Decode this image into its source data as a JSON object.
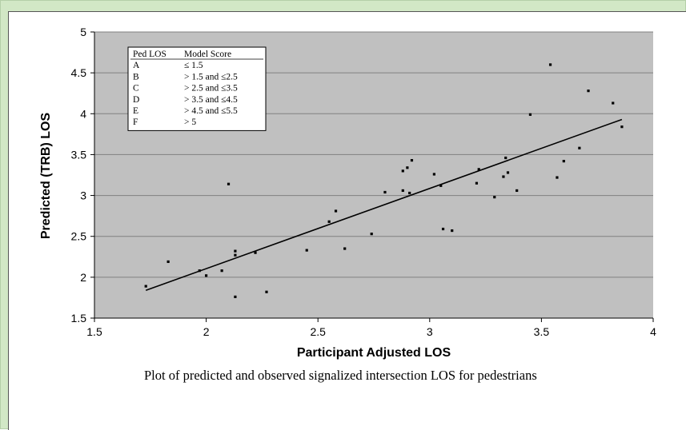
{
  "caption": "Plot of predicted and observed signalized intersection LOS for pedestrians",
  "colors": {
    "page_border": "#d2e8c6",
    "plot_bg": "#c0c0c0",
    "grid": "#808080",
    "points": "#000000",
    "line": "#000000"
  },
  "chart_data": {
    "type": "scatter",
    "xlabel": "Participant Adjusted LOS",
    "ylabel": "Predicted (TRB) LOS",
    "xlim": [
      1.5,
      4
    ],
    "ylim": [
      1.5,
      5
    ],
    "x_ticks": [
      "1.5",
      "2",
      "2.5",
      "3",
      "3.5",
      "4"
    ],
    "y_ticks": [
      "1.5",
      "2",
      "2.5",
      "3",
      "3.5",
      "4",
      "4.5",
      "5"
    ],
    "grid": "horizontal",
    "series": [
      {
        "points": [
          [
            1.73,
            1.89
          ],
          [
            1.83,
            2.19
          ],
          [
            1.97,
            2.08
          ],
          [
            2.0,
            2.02
          ],
          [
            2.07,
            2.08
          ],
          [
            2.1,
            3.14
          ],
          [
            2.13,
            2.32
          ],
          [
            2.13,
            2.27
          ],
          [
            2.13,
            1.76
          ],
          [
            2.22,
            2.3
          ],
          [
            2.27,
            1.82
          ],
          [
            2.45,
            2.33
          ],
          [
            2.55,
            2.68
          ],
          [
            2.58,
            2.81
          ],
          [
            2.62,
            2.35
          ],
          [
            2.74,
            2.53
          ],
          [
            2.8,
            3.04
          ],
          [
            2.88,
            3.06
          ],
          [
            2.88,
            3.3
          ],
          [
            2.9,
            3.34
          ],
          [
            2.91,
            3.03
          ],
          [
            2.92,
            3.43
          ],
          [
            3.02,
            3.26
          ],
          [
            3.05,
            3.12
          ],
          [
            3.06,
            2.59
          ],
          [
            3.1,
            2.57
          ],
          [
            3.21,
            3.15
          ],
          [
            3.22,
            3.32
          ],
          [
            3.29,
            2.98
          ],
          [
            3.33,
            3.23
          ],
          [
            3.34,
            3.46
          ],
          [
            3.35,
            3.28
          ],
          [
            3.39,
            3.06
          ],
          [
            3.45,
            3.99
          ],
          [
            3.54,
            4.6
          ],
          [
            3.57,
            3.22
          ],
          [
            3.6,
            3.42
          ],
          [
            3.67,
            3.58
          ],
          [
            3.71,
            4.28
          ],
          [
            3.82,
            4.13
          ],
          [
            3.86,
            3.84
          ]
        ]
      }
    ],
    "trendline": {
      "x": [
        1.73,
        3.86
      ],
      "y": [
        1.84,
        3.93
      ]
    },
    "legend_table": {
      "headers": [
        "Ped LOS",
        "Model Score"
      ],
      "rows": [
        [
          "A",
          "≤ 1.5"
        ],
        [
          "B",
          "> 1.5 and ≤2.5"
        ],
        [
          "C",
          "> 2.5 and ≤3.5"
        ],
        [
          "D",
          "> 3.5 and ≤4.5"
        ],
        [
          "E",
          "> 4.5 and ≤5.5"
        ],
        [
          "F",
          "> 5"
        ]
      ]
    }
  }
}
